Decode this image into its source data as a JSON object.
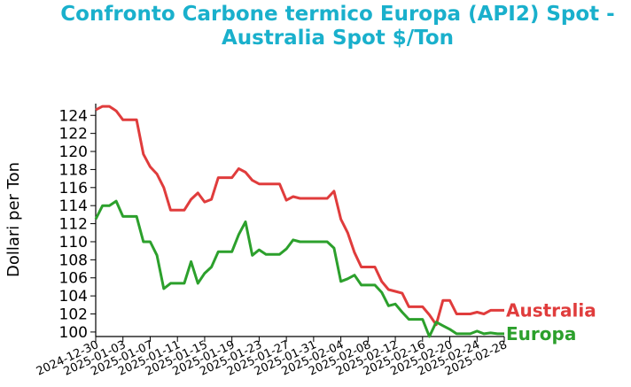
{
  "chart_data": {
    "type": "line",
    "title": "Confronto Carbone termico Europa (API2) Spot - Australia Spot $/Ton",
    "title_lines": [
      "Confronto Carbone termico Europa (API2) Spot -",
      "Australia Spot $/Ton"
    ],
    "xlabel": "",
    "ylabel": "Dollari per Ton",
    "ylim": [
      99.5,
      125.3
    ],
    "yticks": [
      100,
      102,
      104,
      106,
      108,
      110,
      112,
      114,
      116,
      118,
      120,
      122,
      124
    ],
    "xlim": [
      "2024-12-30",
      "2025-02-28"
    ],
    "xticks": [
      "2024-12-30",
      "2025-01-03",
      "2025-01-07",
      "2025-01-11",
      "2025-01-15",
      "2025-01-19",
      "2025-01-23",
      "2025-01-27",
      "2025-01-31",
      "2025-02-04",
      "2025-02-08",
      "2025-02-12",
      "2025-02-16",
      "2025-02-20",
      "2025-02-24",
      "2025-02-28"
    ],
    "grid": false,
    "legend": "labels at end of lines",
    "series": [
      {
        "name": "Australia",
        "color": "#e03c3c",
        "points": [
          [
            "2024-12-30",
            124.6
          ],
          [
            "2024-12-31",
            125.0
          ],
          [
            "2025-01-01",
            125.0
          ],
          [
            "2025-01-02",
            124.5
          ],
          [
            "2025-01-03",
            123.5
          ],
          [
            "2025-01-04",
            123.5
          ],
          [
            "2025-01-05",
            123.5
          ],
          [
            "2025-01-06",
            119.7
          ],
          [
            "2025-01-07",
            118.3
          ],
          [
            "2025-01-08",
            117.5
          ],
          [
            "2025-01-09",
            116.0
          ],
          [
            "2025-01-10",
            113.5
          ],
          [
            "2025-01-11",
            113.5
          ],
          [
            "2025-01-12",
            113.5
          ],
          [
            "2025-01-13",
            114.7
          ],
          [
            "2025-01-14",
            115.4
          ],
          [
            "2025-01-15",
            114.4
          ],
          [
            "2025-01-16",
            114.7
          ],
          [
            "2025-01-17",
            117.1
          ],
          [
            "2025-01-18",
            117.1
          ],
          [
            "2025-01-19",
            117.1
          ],
          [
            "2025-01-20",
            118.1
          ],
          [
            "2025-01-21",
            117.7
          ],
          [
            "2025-01-22",
            116.8
          ],
          [
            "2025-01-23",
            116.4
          ],
          [
            "2025-01-24",
            116.4
          ],
          [
            "2025-01-25",
            116.4
          ],
          [
            "2025-01-26",
            116.4
          ],
          [
            "2025-01-27",
            114.6
          ],
          [
            "2025-01-28",
            115.0
          ],
          [
            "2025-01-29",
            114.8
          ],
          [
            "2025-01-30",
            114.8
          ],
          [
            "2025-01-31",
            114.8
          ],
          [
            "2025-02-01",
            114.8
          ],
          [
            "2025-02-02",
            114.8
          ],
          [
            "2025-02-03",
            115.6
          ],
          [
            "2025-02-04",
            112.5
          ],
          [
            "2025-02-05",
            111.0
          ],
          [
            "2025-02-06",
            108.8
          ],
          [
            "2025-02-07",
            107.2
          ],
          [
            "2025-02-08",
            107.2
          ],
          [
            "2025-02-09",
            107.2
          ],
          [
            "2025-02-10",
            105.6
          ],
          [
            "2025-02-11",
            104.7
          ],
          [
            "2025-02-12",
            104.5
          ],
          [
            "2025-02-13",
            104.3
          ],
          [
            "2025-02-14",
            102.8
          ],
          [
            "2025-02-15",
            102.8
          ],
          [
            "2025-02-16",
            102.8
          ],
          [
            "2025-02-17",
            101.9
          ],
          [
            "2025-02-18",
            100.8
          ],
          [
            "2025-02-19",
            103.5
          ],
          [
            "2025-02-20",
            103.5
          ],
          [
            "2025-02-21",
            102.0
          ],
          [
            "2025-02-22",
            102.0
          ],
          [
            "2025-02-23",
            102.0
          ],
          [
            "2025-02-24",
            102.2
          ],
          [
            "2025-02-25",
            102.0
          ],
          [
            "2025-02-26",
            102.4
          ],
          [
            "2025-02-27",
            102.4
          ],
          [
            "2025-02-28",
            102.4
          ]
        ]
      },
      {
        "name": "Europa",
        "color": "#2ca02c",
        "points": [
          [
            "2024-12-30",
            112.5
          ],
          [
            "2024-12-31",
            114.0
          ],
          [
            "2025-01-01",
            114.0
          ],
          [
            "2025-01-02",
            114.5
          ],
          [
            "2025-01-03",
            112.8
          ],
          [
            "2025-01-04",
            112.8
          ],
          [
            "2025-01-05",
            112.8
          ],
          [
            "2025-01-06",
            110.0
          ],
          [
            "2025-01-07",
            110.0
          ],
          [
            "2025-01-08",
            108.5
          ],
          [
            "2025-01-09",
            104.8
          ],
          [
            "2025-01-10",
            105.4
          ],
          [
            "2025-01-11",
            105.4
          ],
          [
            "2025-01-12",
            105.4
          ],
          [
            "2025-01-13",
            107.8
          ],
          [
            "2025-01-14",
            105.4
          ],
          [
            "2025-01-15",
            106.5
          ],
          [
            "2025-01-16",
            107.2
          ],
          [
            "2025-01-17",
            108.9
          ],
          [
            "2025-01-18",
            108.9
          ],
          [
            "2025-01-19",
            108.9
          ],
          [
            "2025-01-20",
            110.8
          ],
          [
            "2025-01-21",
            112.2
          ],
          [
            "2025-01-22",
            108.5
          ],
          [
            "2025-01-23",
            109.1
          ],
          [
            "2025-01-24",
            108.6
          ],
          [
            "2025-01-25",
            108.6
          ],
          [
            "2025-01-26",
            108.6
          ],
          [
            "2025-01-27",
            109.2
          ],
          [
            "2025-01-28",
            110.2
          ],
          [
            "2025-01-29",
            110.0
          ],
          [
            "2025-01-30",
            110.0
          ],
          [
            "2025-01-31",
            110.0
          ],
          [
            "2025-02-01",
            110.0
          ],
          [
            "2025-02-02",
            110.0
          ],
          [
            "2025-02-03",
            109.3
          ],
          [
            "2025-02-04",
            105.6
          ],
          [
            "2025-02-05",
            105.9
          ],
          [
            "2025-02-06",
            106.3
          ],
          [
            "2025-02-07",
            105.2
          ],
          [
            "2025-02-08",
            105.2
          ],
          [
            "2025-02-09",
            105.2
          ],
          [
            "2025-02-10",
            104.4
          ],
          [
            "2025-02-11",
            102.9
          ],
          [
            "2025-02-12",
            103.1
          ],
          [
            "2025-02-13",
            102.2
          ],
          [
            "2025-02-14",
            101.4
          ],
          [
            "2025-02-15",
            101.4
          ],
          [
            "2025-02-16",
            101.4
          ],
          [
            "2025-02-17",
            99.5
          ],
          [
            "2025-02-18",
            101.1
          ],
          [
            "2025-02-19",
            100.7
          ],
          [
            "2025-02-20",
            100.3
          ],
          [
            "2025-02-21",
            99.8
          ],
          [
            "2025-02-22",
            99.8
          ],
          [
            "2025-02-23",
            99.8
          ],
          [
            "2025-02-24",
            100.1
          ],
          [
            "2025-02-25",
            99.8
          ],
          [
            "2025-02-26",
            99.9
          ],
          [
            "2025-02-27",
            99.8
          ],
          [
            "2025-02-28",
            99.8
          ]
        ]
      }
    ]
  }
}
